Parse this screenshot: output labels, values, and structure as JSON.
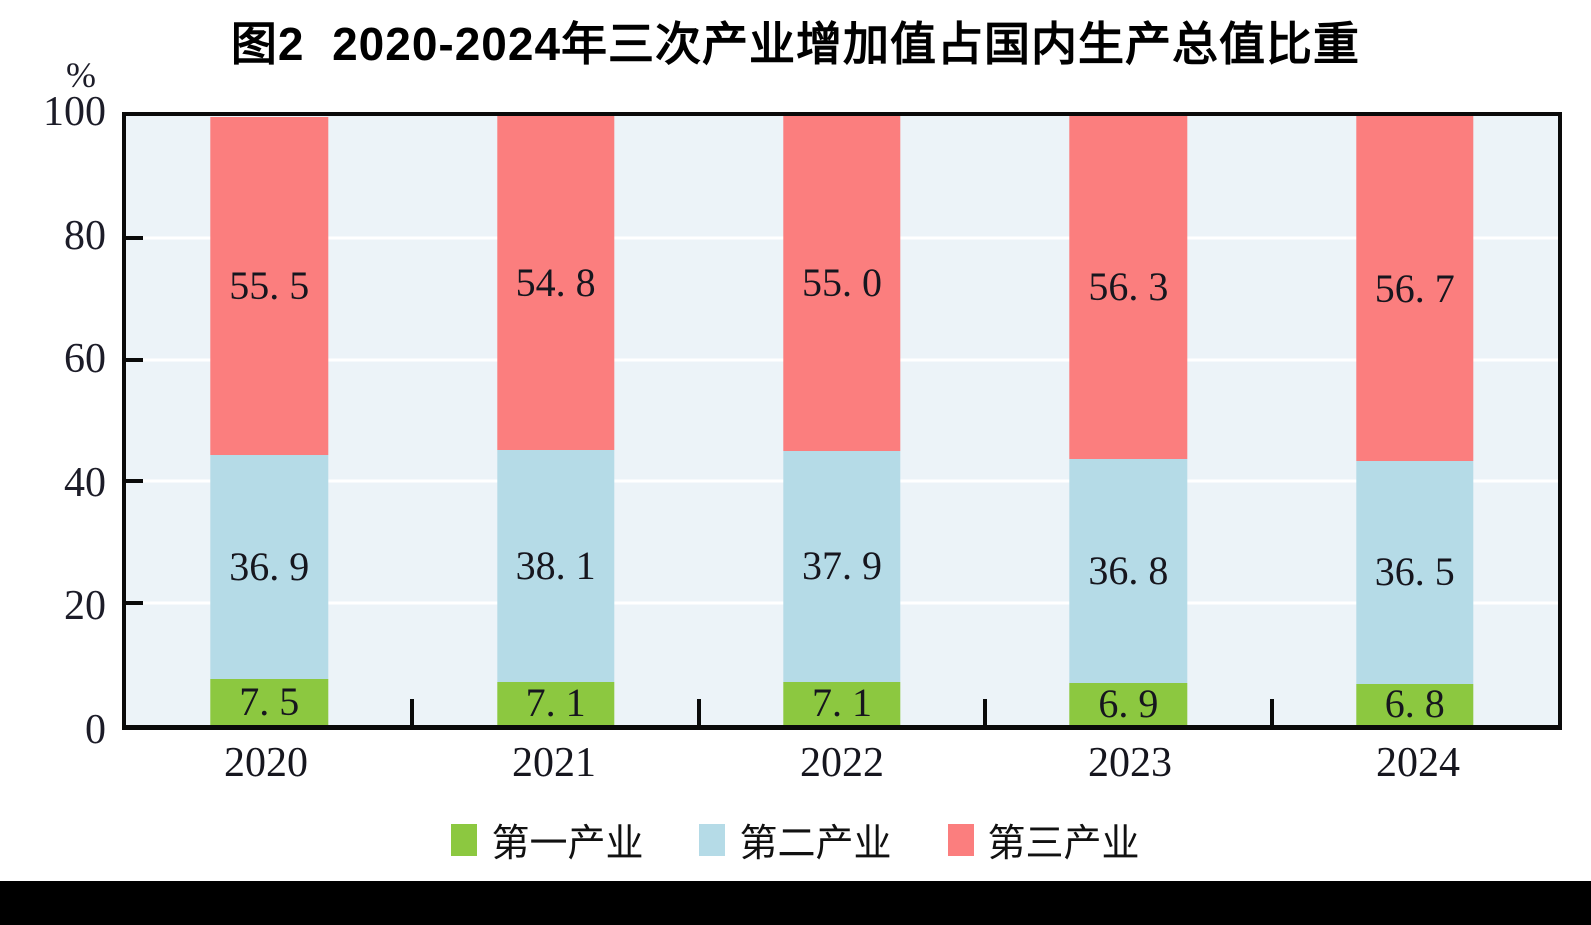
{
  "figure": {
    "title": "图2  2020-2024年三次产业增加值占国内生产总值比重"
  },
  "y_axis": {
    "unit_label": "%",
    "tick_labels": [
      "100",
      "80",
      "60",
      "40",
      "20",
      "0"
    ]
  },
  "x_axis": {
    "tick_labels": [
      "2020",
      "2021",
      "2022",
      "2023",
      "2024"
    ]
  },
  "legend": {
    "items": [
      {
        "label": "第一产业",
        "color": "#8CC840"
      },
      {
        "label": "第二产业",
        "color": "#B5DBE7"
      },
      {
        "label": "第三产业",
        "color": "#FB7E7E"
      }
    ]
  },
  "colors": {
    "plot_background": "#ECF3F8",
    "gridline": "#FFFFFF",
    "axis": "#0A0A0A",
    "label_text": "#16161E",
    "bottom_strip": "#000000"
  },
  "chart_data": {
    "type": "bar",
    "stacked": true,
    "title": "图2 2020-2024年三次产业增加值占国内生产总值比重",
    "categories": [
      "2020",
      "2021",
      "2022",
      "2023",
      "2024"
    ],
    "series": [
      {
        "name": "第一产业",
        "color": "#8CC840",
        "values": [
          7.5,
          7.1,
          7.1,
          6.9,
          6.8
        ]
      },
      {
        "name": "第二产业",
        "color": "#B5DBE7",
        "values": [
          36.9,
          38.1,
          37.9,
          36.8,
          36.5
        ]
      },
      {
        "name": "第三产业",
        "color": "#FB7E7E",
        "values": [
          55.5,
          54.8,
          55.0,
          56.3,
          56.7
        ]
      }
    ],
    "xlabel": "",
    "ylabel": "%",
    "ylim": [
      0,
      100
    ],
    "gridlines": [
      20,
      40,
      60,
      80
    ],
    "grid": true,
    "legend_position": "bottom",
    "value_labels": "inside-center"
  }
}
